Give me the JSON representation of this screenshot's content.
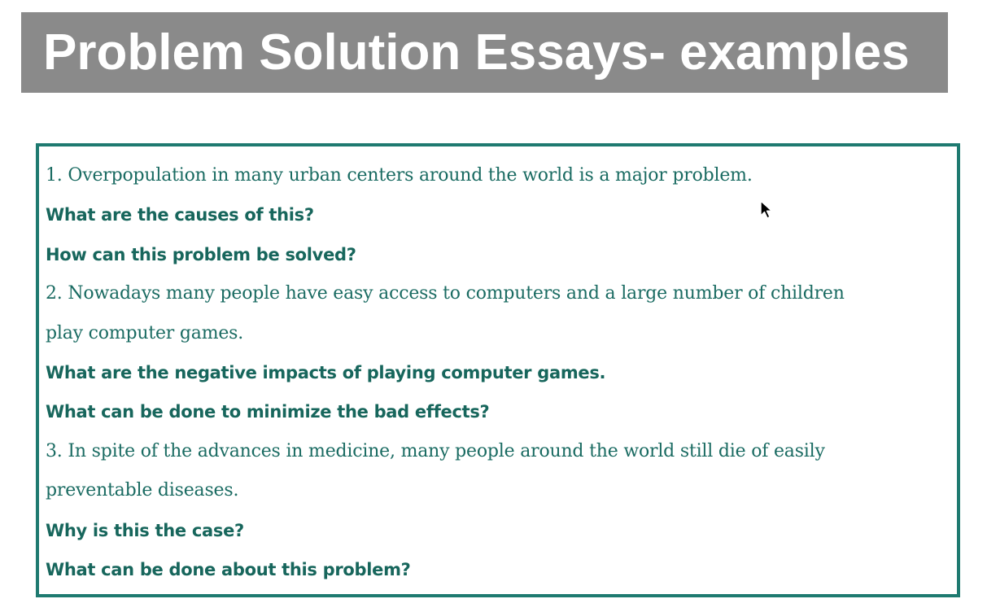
{
  "header": {
    "title": "Problem Solution Essays- examples"
  },
  "examples": [
    {
      "text": "1. Overpopulation in many urban centers around the world is a major problem.",
      "type": "prompt"
    },
    {
      "text": "What are the causes of this?",
      "type": "question"
    },
    {
      "text": "How can this problem be solved?",
      "type": "question"
    },
    {
      "text": "2. Nowadays many people have easy access to computers and a large number of children",
      "type": "prompt"
    },
    {
      "text": "play computer games.",
      "type": "prompt"
    },
    {
      "text": "What are the negative impacts of playing computer games.",
      "type": "question"
    },
    {
      "text": "What can be done to minimize the bad effects?",
      "type": "question"
    },
    {
      "text": "3. In spite of the advances in medicine, many people around the world still die of easily",
      "type": "prompt"
    },
    {
      "text": "preventable diseases.",
      "type": "prompt"
    },
    {
      "text": "Why is this the case?",
      "type": "question"
    },
    {
      "text": "What can be done about this problem?",
      "type": "question"
    }
  ],
  "colors": {
    "title_bar": "#8a8a8a",
    "title_text": "#ffffff",
    "teal_text": "#1a6b62",
    "border": "#1e7a70"
  },
  "icons": {
    "cursor": "mouse-pointer-icon"
  }
}
